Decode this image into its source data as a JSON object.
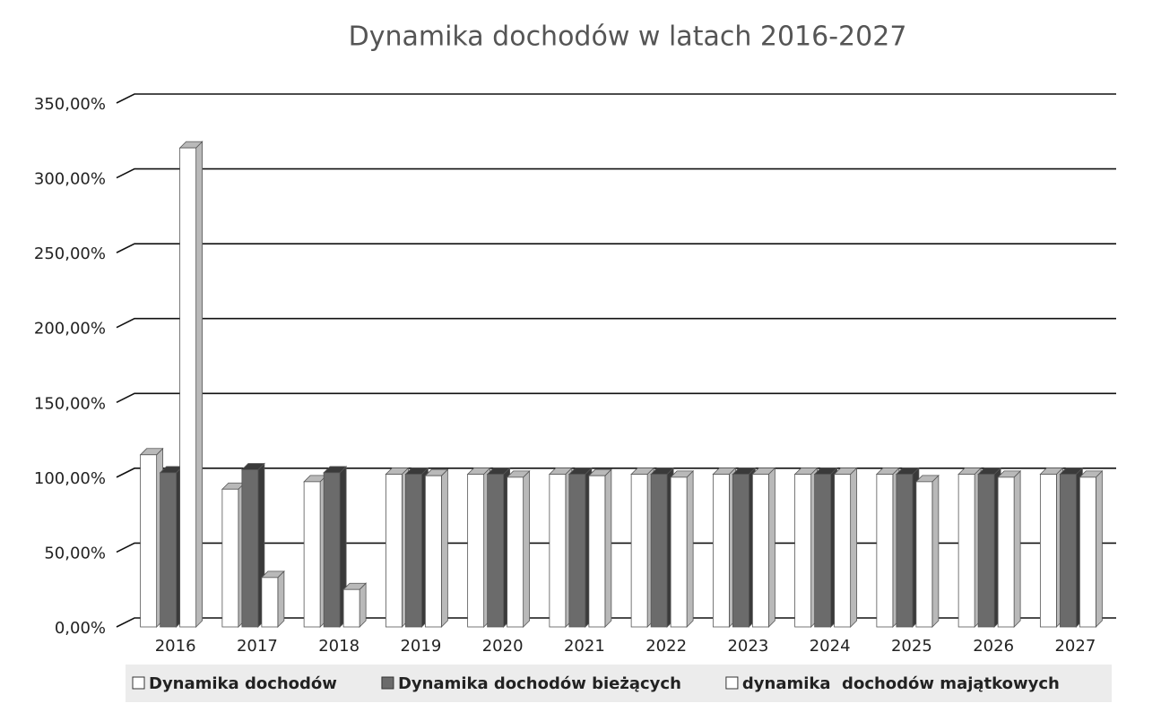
{
  "chart_data": {
    "type": "bar",
    "title": "Dynamika dochodów w latach 2016-2027",
    "categories": [
      "2016",
      "2017",
      "2018",
      "2019",
      "2020",
      "2021",
      "2022",
      "2023",
      "2024",
      "2025",
      "2026",
      "2027"
    ],
    "series": [
      {
        "name": "Dynamika dochodów",
        "color": "#ffffff",
        "values": [
          115,
          92,
          97,
          102,
          102,
          102,
          102,
          102,
          102,
          102,
          102,
          102
        ]
      },
      {
        "name": "Dynamika dochodów bieżących",
        "color": "#6b6b6b",
        "values": [
          103,
          105,
          103,
          102,
          102,
          102,
          102,
          102,
          102,
          102,
          102,
          102
        ]
      },
      {
        "name": "dynamika  dochodów majątkowych",
        "color": "#ffffff",
        "values": [
          320,
          33,
          25,
          101,
          100,
          101,
          100,
          102,
          102,
          97,
          100,
          100
        ]
      }
    ],
    "ylim": [
      0,
      350
    ],
    "yticks": [
      {
        "value": 0,
        "label": "0,00%"
      },
      {
        "value": 50,
        "label": "50,00%"
      },
      {
        "value": 100,
        "label": "100,00%"
      },
      {
        "value": 150,
        "label": "150,00%"
      },
      {
        "value": 200,
        "label": "200,00%"
      },
      {
        "value": 250,
        "label": "250,00%"
      },
      {
        "value": 300,
        "label": "300,00%"
      },
      {
        "value": 350,
        "label": "350,00%"
      }
    ],
    "grid": true
  }
}
